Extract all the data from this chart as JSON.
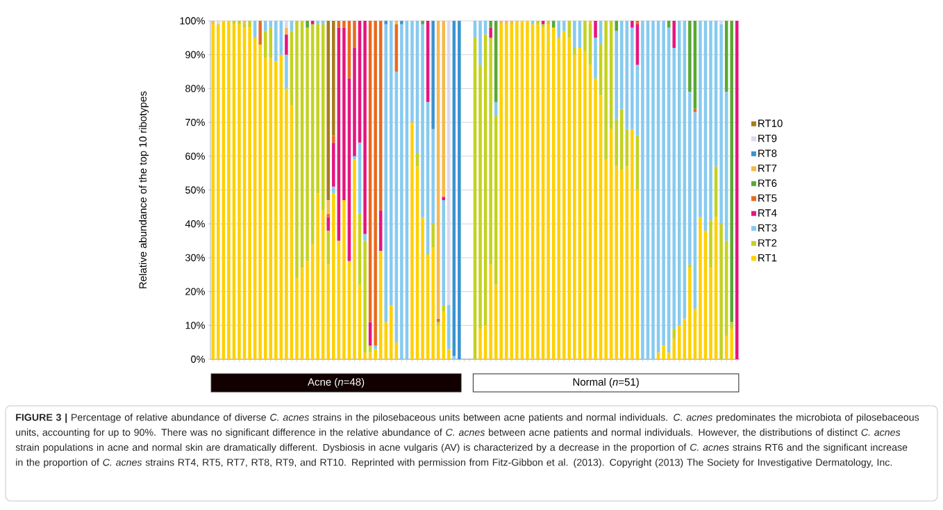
{
  "chart_data": {
    "type": "bar",
    "stacked": true,
    "ylabel": "Relative abundance of the top 10 ribotypes",
    "categories": [
      null,
      null,
      null,
      null,
      null,
      null,
      null,
      null,
      null,
      null,
      null,
      null,
      null,
      null,
      null,
      null,
      null,
      null,
      null,
      null,
      null,
      null,
      null,
      null,
      null,
      null,
      null,
      null,
      null,
      null,
      null,
      null,
      null,
      null,
      null,
      null,
      null,
      null,
      null,
      null,
      null,
      null,
      null,
      null,
      null,
      null,
      null,
      null,
      null,
      null,
      null,
      null,
      null,
      null,
      null,
      null,
      null,
      null,
      null,
      null,
      null,
      null,
      null,
      null,
      null,
      null,
      null,
      null,
      null,
      null,
      null,
      null,
      null,
      null,
      null,
      null,
      null,
      null,
      null,
      null,
      null,
      null,
      null,
      null,
      null,
      null,
      null,
      null,
      null,
      null,
      null,
      null,
      null,
      null,
      null,
      null,
      null,
      null,
      null,
      null,
      null
    ],
    "series": [
      {
        "name": "RT1",
        "color": "#ffd000",
        "values": [
          99,
          99,
          100,
          100,
          99,
          99,
          98,
          98,
          95,
          93,
          89,
          89,
          88,
          90,
          80,
          75,
          24,
          27,
          29,
          34,
          49,
          44,
          28,
          49,
          35,
          47,
          29,
          59,
          22,
          2,
          2,
          3,
          32,
          11,
          16,
          5,
          0,
          0,
          70,
          57,
          42,
          31,
          33,
          10,
          14,
          3,
          0,
          0,
          null,
          null,
          0,
          9,
          10,
          28,
          22,
          99,
          99,
          99,
          100,
          100,
          100,
          99,
          99,
          98,
          99,
          98,
          95,
          97,
          95,
          90,
          92,
          91,
          87,
          83,
          78,
          59,
          68,
          57,
          56,
          57,
          68,
          50,
          0,
          0,
          0,
          2,
          4,
          2,
          6,
          10,
          12,
          27,
          15,
          42,
          38,
          27,
          42,
          0,
          7,
          9,
          0
        ]
      },
      {
        "name": "RT2",
        "color": "#c3d21f",
        "values": [
          0,
          0,
          0,
          0,
          1,
          1,
          1,
          2,
          0,
          0,
          8,
          9,
          0,
          0,
          0,
          22,
          76,
          73,
          69,
          65,
          50,
          55,
          10,
          0,
          0,
          0,
          0,
          0,
          21,
          33,
          2,
          0,
          0,
          0,
          0,
          0,
          0,
          0,
          0,
          4,
          0,
          0,
          7,
          1,
          2,
          0,
          0,
          0,
          null,
          null,
          95,
          78,
          86,
          67,
          50,
          0,
          0,
          0,
          0,
          0,
          0,
          0,
          1,
          1,
          1,
          0,
          0,
          0,
          5,
          2,
          0,
          9,
          12,
          0,
          15,
          41,
          32,
          14,
          18,
          11,
          0,
          16,
          0,
          0,
          0,
          0,
          0,
          0,
          3,
          0,
          0,
          1,
          0,
          0,
          0,
          14,
          15,
          40,
          28,
          2,
          0
        ]
      },
      {
        "name": "RT3",
        "color": "#86caf0",
        "values": [
          0,
          0,
          0,
          0,
          0,
          0,
          0,
          0,
          5,
          0,
          3,
          2,
          12,
          10,
          10,
          3,
          0,
          0,
          0,
          0,
          1,
          1,
          0,
          2,
          0,
          0,
          0,
          1,
          21,
          2,
          0,
          1,
          0,
          88,
          84,
          80,
          99,
          100,
          30,
          39,
          57,
          45,
          28,
          0,
          31,
          13,
          1,
          0,
          null,
          null,
          5,
          13,
          4,
          0,
          4,
          0,
          0,
          0,
          0,
          0,
          0,
          1,
          0,
          0,
          0,
          0,
          5,
          3,
          0,
          8,
          8,
          0,
          0,
          12,
          7,
          0,
          0,
          26,
          26,
          32,
          30,
          21,
          100,
          100,
          100,
          98,
          96,
          96,
          83,
          90,
          88,
          51,
          58,
          58,
          62,
          59,
          43,
          59,
          44,
          0,
          0
        ]
      },
      {
        "name": "RT4",
        "color": "#e6157f",
        "values": [
          0,
          0,
          0,
          0,
          0,
          0,
          0,
          0,
          0,
          0,
          0,
          0,
          0,
          0,
          6,
          0,
          0,
          0,
          0,
          1,
          0,
          0,
          4,
          13,
          63,
          51,
          54,
          32,
          36,
          63,
          7,
          0,
          12,
          0,
          0,
          0,
          0,
          0,
          0,
          0,
          0,
          24,
          0,
          0,
          1,
          0,
          0,
          0,
          null,
          null,
          0,
          0,
          0,
          3,
          0,
          0,
          0,
          0,
          0,
          0,
          0,
          0,
          0,
          1,
          0,
          0,
          0,
          0,
          0,
          0,
          0,
          0,
          0,
          5,
          0,
          0,
          0,
          0,
          0,
          0,
          2,
          12,
          0,
          0,
          0,
          0,
          0,
          0,
          8,
          0,
          0,
          0,
          0,
          0,
          0,
          0,
          0,
          0,
          0,
          0,
          100
        ]
      },
      {
        "name": "RT5",
        "color": "#ea6a1f",
        "values": [
          0,
          0,
          0,
          0,
          0,
          0,
          0,
          0,
          0,
          7,
          0,
          0,
          0,
          0,
          0,
          0,
          0,
          0,
          0,
          0,
          0,
          0,
          1,
          2,
          2,
          2,
          17,
          8,
          0,
          0,
          89,
          96,
          56,
          0,
          0,
          14,
          0,
          0,
          0,
          0,
          0,
          0,
          0,
          1,
          0,
          0,
          0,
          0,
          null,
          null,
          0,
          0,
          0,
          0,
          0,
          0,
          0,
          0,
          0,
          0,
          0,
          0,
          0,
          0,
          0,
          0,
          0,
          0,
          0,
          0,
          0,
          0,
          0,
          0,
          0,
          0,
          0,
          0,
          0,
          0,
          0,
          1,
          0,
          0,
          0,
          0,
          0,
          0,
          0,
          0,
          0,
          0,
          1,
          0,
          0,
          0,
          0,
          0,
          0,
          0,
          0
        ]
      },
      {
        "name": "RT6",
        "color": "#5aa833",
        "values": [
          0,
          0,
          0,
          0,
          0,
          0,
          0,
          0,
          0,
          0,
          0,
          0,
          0,
          0,
          0,
          0,
          0,
          0,
          2,
          0,
          0,
          0,
          0,
          0,
          0,
          0,
          0,
          0,
          0,
          0,
          0,
          0,
          0,
          0,
          0,
          0,
          0,
          0,
          0,
          0,
          1,
          0,
          0,
          0,
          0,
          0,
          0,
          0,
          null,
          null,
          0,
          0,
          0,
          2,
          24,
          0,
          0,
          0,
          0,
          0,
          0,
          0,
          0,
          0,
          0,
          2,
          0,
          0,
          0,
          0,
          0,
          0,
          0,
          0,
          0,
          0,
          0,
          3,
          0,
          0,
          0,
          0,
          0,
          0,
          0,
          0,
          0,
          2,
          0,
          0,
          0,
          21,
          26,
          0,
          0,
          0,
          0,
          0,
          21,
          89,
          0
        ]
      },
      {
        "name": "RT7",
        "color": "#f7b84b",
        "values": [
          1,
          0,
          0,
          0,
          0,
          0,
          1,
          0,
          0,
          0,
          0,
          0,
          0,
          0,
          2,
          0,
          0,
          0,
          0,
          0,
          0,
          0,
          4,
          0,
          0,
          0,
          0,
          0,
          0,
          0,
          0,
          0,
          0,
          0,
          0,
          1,
          0,
          0,
          0,
          0,
          0,
          0,
          0,
          88,
          52,
          0,
          0,
          0,
          null,
          null,
          0,
          0,
          0,
          0,
          0,
          1,
          1,
          1,
          0,
          0,
          0,
          0,
          0,
          0,
          0,
          0,
          0,
          0,
          0,
          0,
          0,
          0,
          1,
          0,
          0,
          0,
          0,
          0,
          0,
          0,
          0,
          0,
          0,
          0,
          0,
          0,
          0,
          0,
          0,
          0,
          0,
          0,
          0,
          0,
          0,
          0,
          0,
          0,
          0,
          0,
          0
        ]
      },
      {
        "name": "RT8",
        "color": "#3b93d1",
        "values": [
          0,
          0,
          0,
          0,
          0,
          0,
          0,
          0,
          0,
          0,
          0,
          0,
          0,
          0,
          0,
          0,
          0,
          0,
          0,
          0,
          0,
          0,
          0,
          0,
          0,
          0,
          0,
          0,
          0,
          0,
          0,
          0,
          0,
          1,
          0,
          0,
          1,
          0,
          0,
          0,
          0,
          0,
          32,
          0,
          0,
          0,
          99,
          100,
          null,
          null,
          0,
          0,
          0,
          0,
          0,
          0,
          0,
          0,
          0,
          0,
          0,
          0,
          0,
          0,
          0,
          0,
          0,
          0,
          0,
          0,
          0,
          0,
          0,
          0,
          0,
          0,
          0,
          0,
          0,
          0,
          0,
          0,
          0,
          0,
          0,
          0,
          0,
          0,
          0,
          0,
          0,
          0,
          0,
          0,
          0,
          0,
          0,
          0,
          0,
          0,
          0
        ]
      },
      {
        "name": "RT9",
        "color": "#d9d9ef",
        "values": [
          0,
          1,
          0,
          0,
          0,
          0,
          0,
          0,
          0,
          0,
          0,
          0,
          0,
          0,
          2,
          0,
          0,
          0,
          0,
          0,
          0,
          0,
          0,
          0,
          0,
          0,
          0,
          0,
          0,
          0,
          0,
          0,
          0,
          0,
          0,
          0,
          0,
          0,
          0,
          0,
          0,
          0,
          0,
          0,
          0,
          84,
          0,
          0,
          null,
          null,
          0,
          0,
          0,
          0,
          0,
          0,
          0,
          0,
          0,
          0,
          0,
          0,
          0,
          0,
          0,
          0,
          0,
          0,
          0,
          0,
          0,
          0,
          0,
          0,
          0,
          0,
          0,
          0,
          0,
          0,
          0,
          0,
          0,
          0,
          0,
          0,
          0,
          0,
          0,
          0,
          0,
          0,
          0,
          0,
          0,
          0,
          0,
          1,
          0,
          0,
          0
        ]
      },
      {
        "name": "RT10",
        "color": "#a67c1c",
        "values": [
          0,
          0,
          0,
          0,
          0,
          0,
          0,
          0,
          0,
          0,
          0,
          0,
          0,
          0,
          0,
          0,
          0,
          0,
          0,
          0,
          0,
          0,
          53,
          34,
          0,
          0,
          0,
          0,
          0,
          0,
          0,
          0,
          0,
          0,
          0,
          0,
          0,
          0,
          0,
          0,
          0,
          0,
          0,
          0,
          0,
          0,
          0,
          0,
          null,
          null,
          0,
          0,
          0,
          0,
          0,
          0,
          0,
          0,
          0,
          0,
          0,
          0,
          0,
          0,
          0,
          0,
          0,
          0,
          0,
          0,
          0,
          0,
          0,
          0,
          0,
          0,
          0,
          0,
          0,
          0,
          0,
          0,
          0,
          0,
          0,
          0,
          0,
          0,
          0,
          0,
          0,
          0,
          0,
          0,
          0,
          0,
          0,
          0,
          0,
          0,
          0
        ]
      }
    ],
    "ylim": [
      0,
      100
    ],
    "yticks": [
      {
        "value": 0,
        "label": "0%"
      },
      {
        "value": 10,
        "label": "10%"
      },
      {
        "value": 20,
        "label": "20%"
      },
      {
        "value": 30,
        "label": "30%"
      },
      {
        "value": 40,
        "label": "40%"
      },
      {
        "value": 50,
        "label": "50%"
      },
      {
        "value": 60,
        "label": "60%"
      },
      {
        "value": 70,
        "label": "70%"
      },
      {
        "value": 80,
        "label": "80%"
      },
      {
        "value": 90,
        "label": "90%"
      },
      {
        "value": 100,
        "label": "100%"
      }
    ],
    "grid": "y",
    "legend": "right",
    "tick_labels": "y",
    "annotations": [
      "Acne (*n*=48)",
      "Normal (*n*=51)",
      "**FIGURE 3 |** Percentage of relative abundance of diverse *C. acnes* strains in the pilosebaceous units between acne patients and normal individuals. *C. acnes* predominates the microbiota of pilosebaceous units, accounting for up to 90%. There was no significant difference in the relative abundance of *C. acnes* between acne patients and normal individuals. However, the distributions of distinct *C. acnes* strain populations in acne and normal skin are dramatically different. Dysbiosis in acne vulgaris (AV) is characterized by a decrease in the proportion of *C. acnes* strains RT6 and the significant increase in the proportion of *C. acnes* strains RT4, RT5, RT7, RT8, RT9, and RT10. Reprinted with permission from Fitz-Gibbon et al. (2013). Copyright (2013) The Society for Investigative Dermatology, Inc."
    ]
  }
}
